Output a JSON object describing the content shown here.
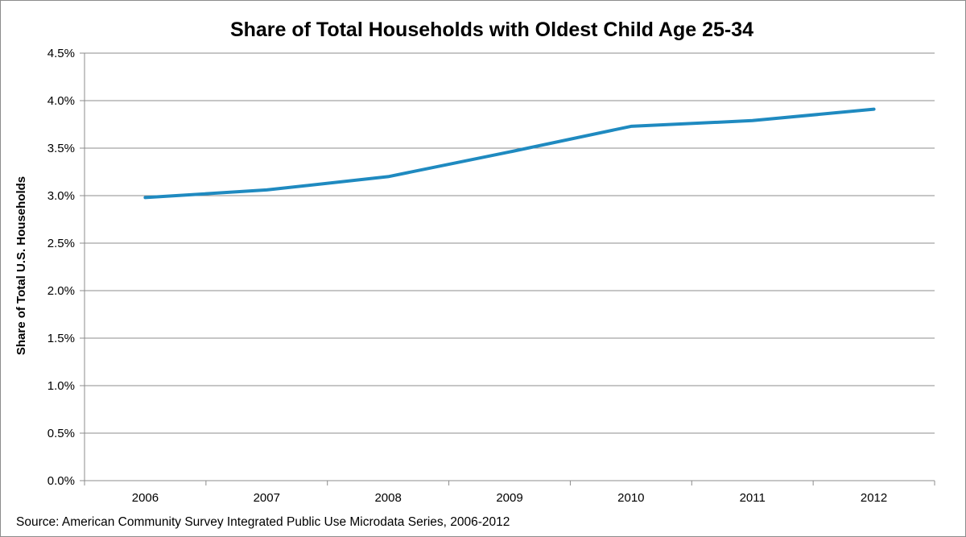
{
  "chart_data": {
    "type": "line",
    "title": "Share of Total Households with Oldest Child Age 25-34",
    "xlabel": "",
    "ylabel": "Share of Total U.S. Households",
    "categories": [
      "2006",
      "2007",
      "2008",
      "2009",
      "2010",
      "2011",
      "2012"
    ],
    "series": [
      {
        "name": "Share of Total Households with Oldest Child Age 25-34",
        "values": [
          2.98,
          3.06,
          3.2,
          3.46,
          3.73,
          3.79,
          3.91
        ],
        "color": "#1f8ac0"
      }
    ],
    "ylim": [
      0,
      4.5
    ],
    "yticks": [
      "0.0%",
      "0.5%",
      "1.0%",
      "1.5%",
      "2.0%",
      "2.5%",
      "3.0%",
      "3.5%",
      "4.0%",
      "4.5%"
    ],
    "grid": true,
    "legend": "none",
    "source": "Source: American Community Survey Integrated Public Use Microdata Series, 2006-2012"
  }
}
